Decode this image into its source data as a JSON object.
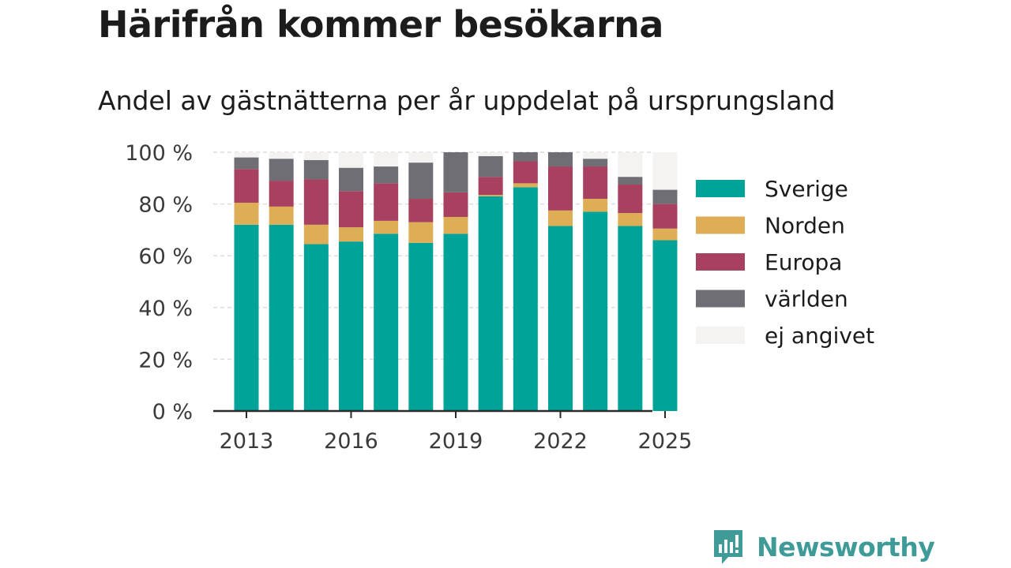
{
  "title": "Härifrån kommer besökarna",
  "subtitle": "Andel av gästnätterna per år uppdelat på ursprungsland",
  "brand": {
    "name": "Newsworthy",
    "icon": "newsworthy-logo-icon"
  },
  "chart_data": {
    "type": "bar",
    "stacked": true,
    "x": [
      2013,
      2014,
      2015,
      2016,
      2017,
      2018,
      2019,
      2020,
      2021,
      2022,
      2023,
      2024,
      2025
    ],
    "xticks": [
      "2013",
      "2016",
      "2019",
      "2022",
      "2025"
    ],
    "yticks": [
      "0 %",
      "20 %",
      "40 %",
      "60 %",
      "80 %",
      "100 %"
    ],
    "ylim": [
      0,
      100
    ],
    "grid": true,
    "legend_position": "right",
    "series": [
      {
        "name": "Sverige",
        "color": "#00a398",
        "values": [
          72,
          72,
          64.5,
          65.5,
          68.5,
          65,
          68.5,
          83,
          86.5,
          71.5,
          77,
          71.5,
          66
        ]
      },
      {
        "name": "Norden",
        "color": "#deae56",
        "values": [
          8.5,
          7,
          7.5,
          5.5,
          5,
          8,
          6.5,
          0.5,
          1.5,
          6,
          5,
          5,
          4.5
        ]
      },
      {
        "name": "Europa",
        "color": "#a8405f",
        "values": [
          13,
          10,
          17.5,
          14,
          14.5,
          9,
          9.5,
          7,
          8.5,
          17,
          12.5,
          11,
          9.5
        ]
      },
      {
        "name": "världen",
        "color": "#6f6e74",
        "values": [
          4.5,
          8.5,
          7.5,
          9,
          6.5,
          14,
          15.5,
          8,
          3.5,
          5.5,
          3,
          3,
          5.5
        ]
      },
      {
        "name": "ej angivet",
        "color": "#f4f3f1",
        "values": [
          2,
          2.5,
          3,
          6,
          5.5,
          4,
          0,
          1.5,
          0,
          0,
          2.5,
          9.5,
          14.5
        ]
      }
    ]
  }
}
